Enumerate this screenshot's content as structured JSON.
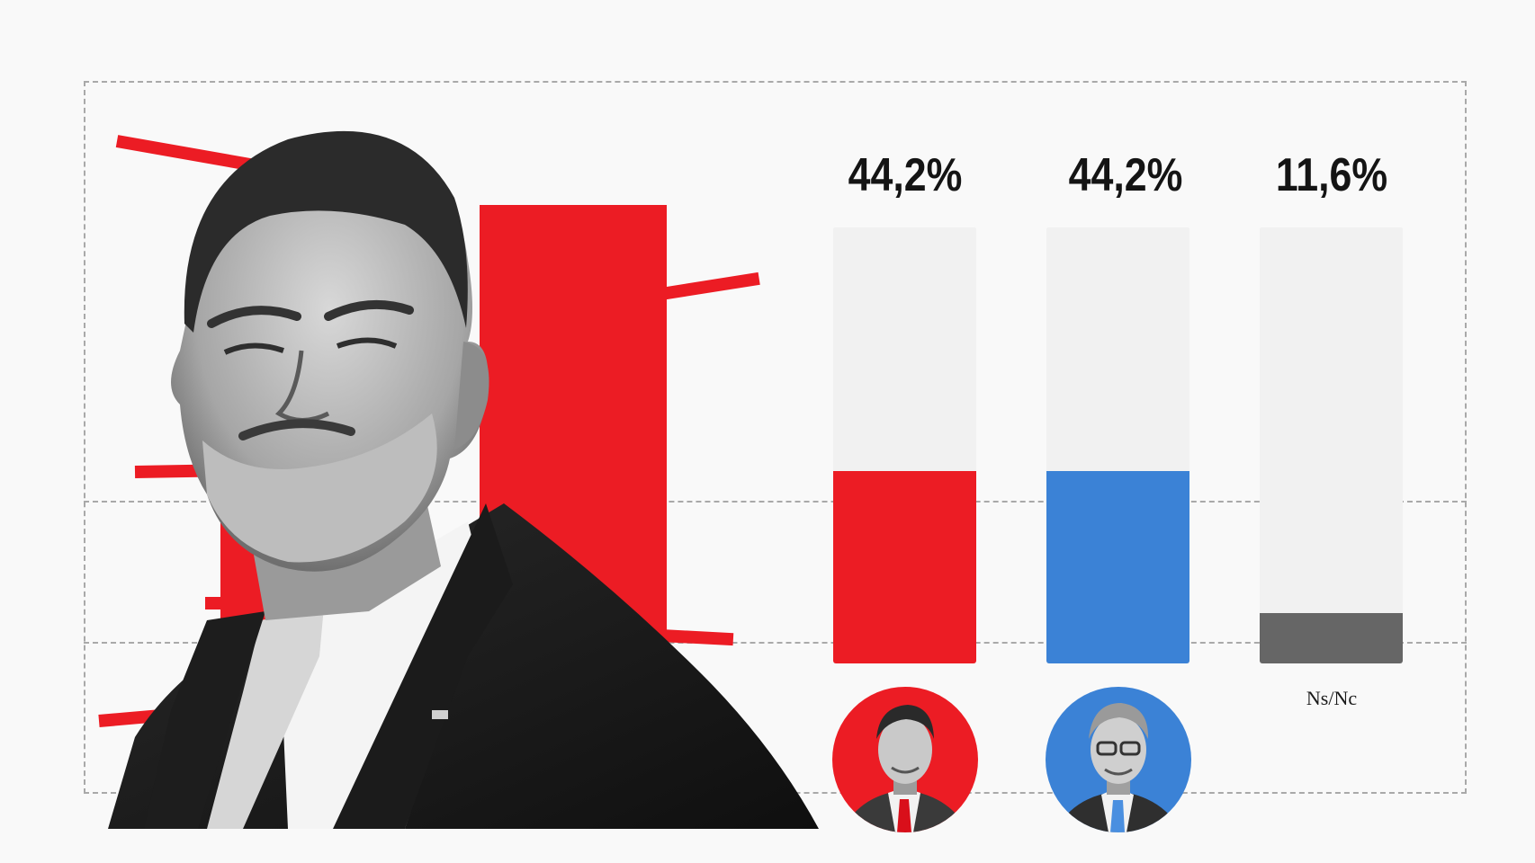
{
  "colors": {
    "background": "#f9f9f9",
    "accent_red": "#ec1c24",
    "accent_blue": "#3b82d6",
    "ns_nc_gray": "#666666",
    "track": "#f1f1f1",
    "gridline": "#a9a9a9"
  },
  "illustration": {
    "main_subject": "black-and-white-portrait-man-suit",
    "decoration": "red-block-and-stripes"
  },
  "chart_data": {
    "type": "bar",
    "categories": [
      "left-candidate",
      "right-candidate",
      "Ns/Nc"
    ],
    "values": [
      44.2,
      44.2,
      11.6
    ],
    "value_labels": [
      "44,2%",
      "44,2%",
      "11,6%"
    ],
    "category_labels": [
      "",
      "",
      "Ns/Nc"
    ],
    "bar_colors": [
      "#ec1c24",
      "#3b82d6",
      "#666666"
    ],
    "category_markers": [
      "avatar-red",
      "avatar-blue",
      "text"
    ],
    "ylim": [
      0,
      100
    ],
    "title": "",
    "xlabel": "",
    "ylabel": "",
    "grid": false,
    "legend": "none"
  }
}
